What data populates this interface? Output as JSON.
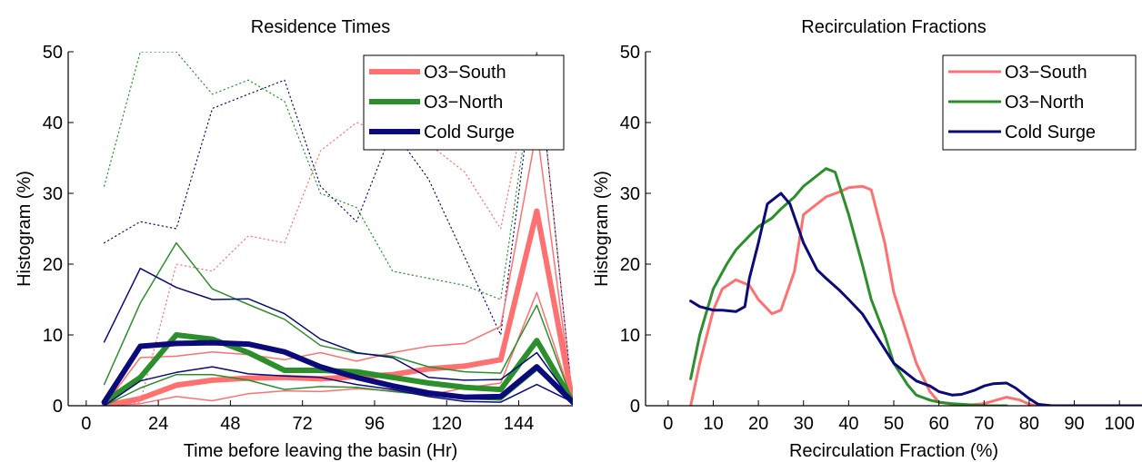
{
  "chart_data": [
    {
      "type": "line",
      "title": "Residence Times",
      "xlabel": "Time before leaving the basin (Hr)",
      "ylabel": "Histogram (%)",
      "xlim": [
        -6,
        162
      ],
      "ylim": [
        0,
        50
      ],
      "xticks": [
        0,
        24,
        48,
        72,
        96,
        120,
        144
      ],
      "yticks": [
        0,
        10,
        20,
        30,
        40,
        50
      ],
      "grid": false,
      "legend_position": "top-right",
      "x": [
        6,
        18,
        30,
        42,
        54,
        66,
        78,
        90,
        102,
        114,
        126,
        138,
        150,
        162
      ],
      "series": [
        {
          "name": "O3−South",
          "color": "#ff7070",
          "width": 6,
          "values": [
            0,
            1,
            2.9,
            3.6,
            3.9,
            4,
            3.8,
            4.1,
            4.4,
            5.2,
            5.6,
            6.5,
            27.5,
            0.5
          ]
        },
        {
          "color": "#ff7070",
          "width": 1.5,
          "values": [
            0,
            6.8,
            7,
            7.6,
            7.2,
            6.5,
            7.5,
            6.3,
            7.5,
            8.4,
            8.8,
            11.2,
            39,
            0.5
          ]
        },
        {
          "color": "#ff7070",
          "width": 1.5,
          "values": [
            0,
            0.3,
            1.3,
            0.7,
            1.7,
            2.1,
            2,
            2.4,
            2.1,
            1.5,
            2.5,
            3.2,
            16,
            0.5
          ]
        },
        {
          "name": "O3−North",
          "color": "#2b8f2b",
          "width": 6,
          "values": [
            0.5,
            4,
            10,
            9.4,
            7.5,
            5,
            5,
            4.8,
            4,
            3.2,
            2.6,
            2.3,
            9.2,
            0.5
          ]
        },
        {
          "color": "#2b8f2b",
          "width": 1.5,
          "values": [
            3,
            14.5,
            23,
            16.5,
            14.3,
            12.2,
            8.5,
            7.4,
            7,
            5.5,
            4.8,
            4.6,
            14.2,
            0.5
          ]
        },
        {
          "color": "#2b8f2b",
          "width": 1.5,
          "values": [
            0,
            2.5,
            4.4,
            4.4,
            3.6,
            2.3,
            2.7,
            2.6,
            2,
            1.5,
            1,
            0.8,
            5,
            0.5
          ]
        },
        {
          "name": "Cold Surge",
          "color": "#0a0a7a",
          "width": 6,
          "values": [
            0.5,
            8.4,
            8.8,
            8.9,
            8.7,
            7.6,
            5.5,
            4,
            2.8,
            1.8,
            1.2,
            1.3,
            5.5,
            0.5
          ]
        },
        {
          "color": "#0a0a7a",
          "width": 1.5,
          "values": [
            9,
            19.4,
            16.7,
            15,
            15.1,
            13,
            9.4,
            7.5,
            6.8,
            4,
            3.6,
            3.7,
            7.5,
            0.5
          ]
        },
        {
          "color": "#0a0a7a",
          "width": 1.5,
          "values": [
            0,
            3.5,
            4.7,
            5.5,
            4.5,
            4.2,
            4,
            3,
            2.3,
            1.3,
            0.6,
            0.5,
            3,
            0.5
          ]
        },
        {
          "style": "dotted",
          "color": "#2b8f2b",
          "width": 1.2,
          "values": [
            31,
            50,
            50,
            44,
            46,
            43,
            30,
            28,
            19,
            18,
            17,
            15,
            50,
            0.5
          ]
        },
        {
          "style": "dotted",
          "color": "#0a0a7a",
          "width": 1.2,
          "values": [
            23,
            26,
            25,
            42,
            44,
            46,
            31,
            26,
            39,
            32,
            21,
            10,
            50,
            0.5
          ]
        },
        {
          "style": "dotted",
          "color": "#ff7070",
          "width": 1.2,
          "values": [
            0,
            0.5,
            20,
            19,
            24,
            23,
            36,
            40,
            38,
            37,
            33,
            25,
            50,
            0.5
          ]
        }
      ]
    },
    {
      "type": "line",
      "title": "Recirculation Fractions",
      "xlabel": "Recirculation Fraction (%)",
      "ylabel": "Histogram (%)",
      "xlim": [
        -5,
        105
      ],
      "ylim": [
        0,
        50
      ],
      "xticks": [
        0,
        10,
        20,
        30,
        40,
        50,
        60,
        70,
        80,
        90,
        100
      ],
      "yticks": [
        0,
        10,
        20,
        30,
        40,
        50
      ],
      "grid": false,
      "legend_position": "top-right",
      "series": [
        {
          "name": "O3−South",
          "color": "#ff7070",
          "width": 3,
          "x": [
            5,
            7,
            10,
            12,
            15,
            18,
            20,
            23,
            25,
            28,
            30,
            33,
            35,
            38,
            40,
            43,
            45,
            48,
            50,
            53,
            55,
            58,
            60,
            63,
            65,
            70,
            75,
            78,
            80,
            82,
            85,
            90,
            100,
            105
          ],
          "values": [
            0,
            6,
            13.5,
            16.5,
            17.8,
            17,
            15,
            13,
            13.5,
            19,
            27,
            28.5,
            29.5,
            30.2,
            30.8,
            31,
            30.5,
            23,
            16,
            10,
            6,
            2,
            0.5,
            0.2,
            0,
            0.3,
            1.2,
            0.8,
            0.2,
            0,
            0,
            0,
            0,
            0
          ]
        },
        {
          "name": "O3−North",
          "color": "#2b8f2b",
          "width": 3,
          "x": [
            5,
            7,
            10,
            13,
            15,
            18,
            20,
            23,
            25,
            28,
            30,
            33,
            35,
            37,
            40,
            43,
            45,
            48,
            50,
            53,
            55,
            58,
            60,
            63,
            65,
            70,
            75
          ],
          "values": [
            3.8,
            10,
            16.5,
            20,
            22,
            24,
            25.3,
            26.5,
            27.8,
            29.5,
            31,
            32.5,
            33.5,
            33,
            27,
            20,
            15,
            10,
            6,
            3,
            1.5,
            0.8,
            0.5,
            0.3,
            0.2,
            0,
            0
          ]
        },
        {
          "name": "Cold Surge",
          "color": "#0a0a7a",
          "width": 3,
          "x": [
            5,
            7,
            10,
            12,
            15,
            17,
            18,
            20,
            22,
            25,
            27,
            30,
            33,
            35,
            38,
            40,
            43,
            45,
            48,
            50,
            53,
            55,
            58,
            60,
            63,
            65,
            68,
            70,
            72,
            75,
            77,
            80,
            82,
            85,
            90,
            100,
            105
          ],
          "values": [
            14.8,
            14,
            13.5,
            13.5,
            13.3,
            14,
            18,
            23,
            28.5,
            30,
            28.5,
            23,
            19.2,
            18,
            16.3,
            15,
            13,
            11,
            8,
            6,
            4.5,
            3.5,
            2.8,
            2,
            1.5,
            1.6,
            2.2,
            2.8,
            3.1,
            3.2,
            2.5,
            1,
            0.2,
            0,
            0,
            0,
            0
          ]
        }
      ]
    }
  ]
}
